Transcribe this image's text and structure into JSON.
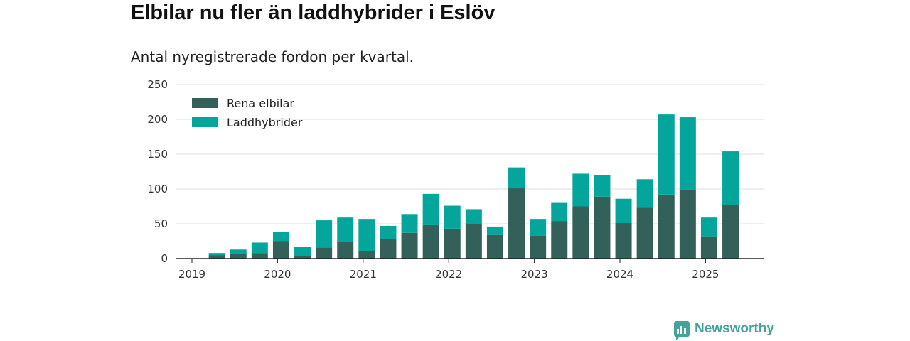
{
  "title": "Elbilar nu fler än laddhybrider i Eslöv",
  "subtitle": "Antal nyregistrerade fordon per kvartal.",
  "brand": {
    "name": "Newsworthy",
    "icon": "bar-chart-icon",
    "color": "#3fa49a"
  },
  "colors": {
    "elbilar": "#336059",
    "laddhybrider": "#04a69c",
    "grid": "#dddddd",
    "axis": "#222222"
  },
  "chart_data": {
    "type": "bar",
    "stacked": true,
    "ylim": [
      0,
      250
    ],
    "yticks": [
      0,
      50,
      100,
      150,
      200,
      250
    ],
    "xtick_labels": [
      "2019",
      "2020",
      "2021",
      "2022",
      "2023",
      "2024",
      "2025"
    ],
    "xtick_quarter_index": [
      0,
      4,
      8,
      12,
      16,
      20,
      24
    ],
    "legend_position": "top-left",
    "grid": true,
    "categories": [
      "2019 Q1",
      "2019 Q2",
      "2019 Q3",
      "2019 Q4",
      "2020 Q1",
      "2020 Q2",
      "2020 Q3",
      "2020 Q4",
      "2021 Q1",
      "2021 Q2",
      "2021 Q3",
      "2021 Q4",
      "2022 Q1",
      "2022 Q2",
      "2022 Q3",
      "2022 Q4",
      "2023 Q1",
      "2023 Q2",
      "2023 Q3",
      "2023 Q4",
      "2024 Q1",
      "2024 Q2",
      "2024 Q3",
      "2024 Q4",
      "2025 Q1",
      "2025 Q2"
    ],
    "series": [
      {
        "name": "Rena elbilar",
        "color": "#336059",
        "values": [
          0,
          5,
          7,
          8,
          25,
          4,
          16,
          24,
          11,
          28,
          37,
          48,
          43,
          49,
          34,
          101,
          33,
          54,
          75,
          89,
          51,
          73,
          92,
          99,
          32,
          77
        ]
      },
      {
        "name": "Laddhybrider",
        "color": "#04a69c",
        "values": [
          0,
          3,
          6,
          15,
          13,
          13,
          39,
          35,
          46,
          19,
          27,
          45,
          33,
          22,
          12,
          30,
          24,
          26,
          47,
          31,
          35,
          41,
          115,
          104,
          27,
          77
        ]
      }
    ]
  }
}
